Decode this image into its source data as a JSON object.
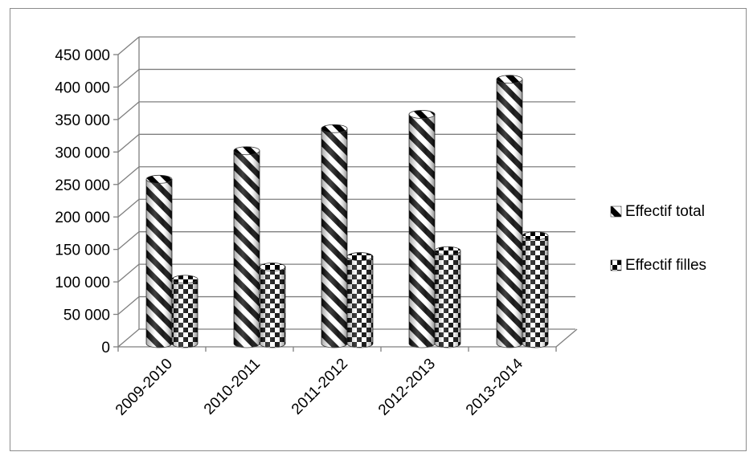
{
  "chart_data": {
    "type": "bar",
    "categories": [
      "2009-2010",
      "2010-2011",
      "2011-2012",
      "2012-2013",
      "2013-2014"
    ],
    "series": [
      {
        "name": "Effectif total",
        "values": [
          258000,
          302000,
          336000,
          358000,
          412000
        ],
        "pattern": "diagonal-stripes"
      },
      {
        "name": "Effectif filles",
        "values": [
          104000,
          123000,
          139000,
          148000,
          171000
        ],
        "pattern": "checkerboard"
      }
    ],
    "yticks": [
      "0",
      "50 000",
      "100 000",
      "150 000",
      "200 000",
      "250 000",
      "300 000",
      "350 000",
      "400 000",
      "450 000"
    ],
    "ylim": [
      0,
      450000
    ],
    "grid": true,
    "legend_position": "right",
    "three_d": true
  }
}
